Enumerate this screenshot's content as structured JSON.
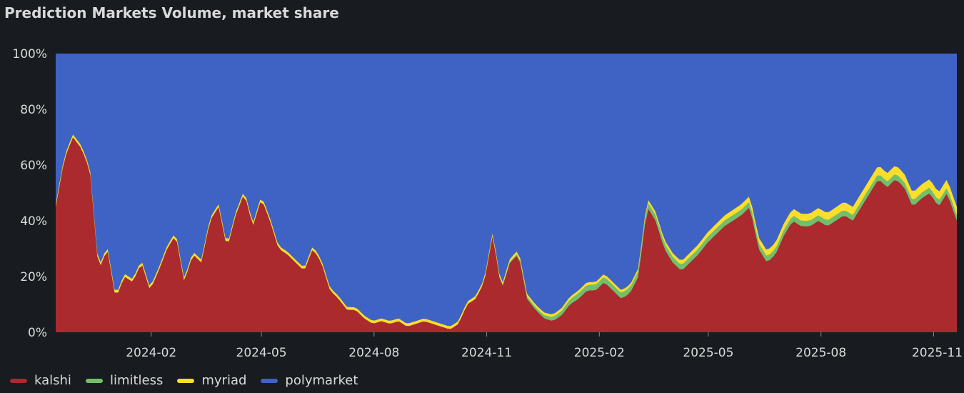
{
  "panel": {
    "title": "Prediction Markets Volume, market share"
  },
  "chart_data": {
    "type": "area",
    "stacked": true,
    "title": "Prediction Markets Volume, market share",
    "xlabel": "",
    "ylabel": "",
    "ylim": [
      0,
      100
    ],
    "y_ticks": [
      "0%",
      "20%",
      "40%",
      "60%",
      "80%",
      "100%"
    ],
    "x_tick_labels": [
      "2024-02",
      "2024-05",
      "2024-08",
      "2024-11",
      "2025-02",
      "2025-05",
      "2025-08",
      "2025-11"
    ],
    "x_tick_dates": [
      "2024-02-01",
      "2024-05-01",
      "2024-08-01",
      "2024-11-01",
      "2025-02-01",
      "2025-05-01",
      "2025-08-01",
      "2025-11-01"
    ],
    "x_range": [
      "2023-11-15",
      "2025-11-20"
    ],
    "legend_position": "bottom-left",
    "grid": false,
    "series": [
      {
        "name": "kalshi",
        "color": "#ab2a2d"
      },
      {
        "name": "limitless",
        "color": "#73bf69"
      },
      {
        "name": "myriad",
        "color": "#fade2a"
      },
      {
        "name": "polymarket",
        "color": "#3f63c4"
      }
    ],
    "kalshi": {
      "x": [
        "2023-11-15",
        "2023-11-22",
        "2023-11-29",
        "2023-12-06",
        "2023-12-13",
        "2023-12-20",
        "2023-12-27",
        "2024-01-03",
        "2024-01-10",
        "2024-01-17",
        "2024-01-24",
        "2024-01-31",
        "2024-02-07",
        "2024-02-14",
        "2024-02-21",
        "2024-02-28",
        "2024-03-06",
        "2024-03-13",
        "2024-03-20",
        "2024-03-27",
        "2024-04-03",
        "2024-04-10",
        "2024-04-17",
        "2024-04-24",
        "2024-05-01",
        "2024-05-08",
        "2024-05-15",
        "2024-05-22",
        "2024-05-29",
        "2024-06-05",
        "2024-06-12",
        "2024-06-19",
        "2024-06-26",
        "2024-07-03",
        "2024-07-10",
        "2024-07-17",
        "2024-07-24",
        "2024-07-31",
        "2024-08-07",
        "2024-08-14",
        "2024-08-21",
        "2024-08-28",
        "2024-09-04",
        "2024-09-11",
        "2024-09-18",
        "2024-09-25",
        "2024-10-02",
        "2024-10-09",
        "2024-10-16",
        "2024-10-23",
        "2024-10-30",
        "2024-11-06",
        "2024-11-13",
        "2024-11-20",
        "2024-11-27",
        "2024-12-04",
        "2024-12-11",
        "2024-12-18",
        "2024-12-25",
        "2025-01-01",
        "2025-01-08",
        "2025-01-15",
        "2025-01-22",
        "2025-01-29",
        "2025-02-05",
        "2025-02-12",
        "2025-02-19",
        "2025-02-26",
        "2025-03-05",
        "2025-03-12",
        "2025-03-19",
        "2025-03-26",
        "2025-04-02",
        "2025-04-09",
        "2025-04-16",
        "2025-04-23",
        "2025-04-30",
        "2025-05-07",
        "2025-05-14",
        "2025-05-21",
        "2025-05-28",
        "2025-06-04",
        "2025-06-11",
        "2025-06-18",
        "2025-06-25",
        "2025-07-02",
        "2025-07-09",
        "2025-07-16",
        "2025-07-23",
        "2025-07-30",
        "2025-08-06",
        "2025-08-13",
        "2025-08-20",
        "2025-08-27",
        "2025-09-03",
        "2025-09-10",
        "2025-09-17",
        "2025-09-24",
        "2025-10-01",
        "2025-10-08",
        "2025-10-15",
        "2025-10-22",
        "2025-10-29",
        "2025-11-05",
        "2025-11-12",
        "2025-11-20"
      ],
      "y": [
        45,
        62,
        70,
        66,
        58,
        22,
        30,
        12,
        20,
        18,
        25,
        15,
        22,
        30,
        35,
        18,
        28,
        25,
        40,
        45,
        30,
        42,
        50,
        38,
        48,
        40,
        30,
        28,
        25,
        22,
        30,
        25,
        15,
        12,
        8,
        8,
        5,
        3,
        4,
        3,
        4,
        2,
        3,
        4,
        3,
        2,
        1,
        3,
        10,
        12,
        18,
        35,
        15,
        25,
        28,
        12,
        8,
        5,
        4,
        6,
        10,
        12,
        15,
        15,
        18,
        15,
        12,
        14,
        20,
        45,
        40,
        30,
        25,
        22,
        25,
        28,
        32,
        35,
        38,
        40,
        42,
        45,
        30,
        25,
        28,
        35,
        40,
        38,
        38,
        40,
        38,
        40,
        42,
        40,
        45,
        50,
        55,
        52,
        55,
        52,
        45,
        48,
        50,
        45,
        50,
        40
      ]
    },
    "limitless": {
      "x": [
        "2023-11-15",
        "2024-06-01",
        "2024-11-01",
        "2024-12-15",
        "2025-01-15",
        "2025-02-15",
        "2025-03-15",
        "2025-06-01",
        "2025-09-01",
        "2025-11-20"
      ],
      "y": [
        0,
        0,
        0,
        1,
        2,
        2,
        2,
        2,
        2,
        2
      ]
    },
    "myriad": {
      "x": [
        "2023-11-15",
        "2024-06-01",
        "2024-11-01",
        "2025-01-01",
        "2025-03-01",
        "2025-06-01",
        "2025-09-01",
        "2025-11-20"
      ],
      "y": [
        1,
        1,
        1,
        1,
        1,
        2,
        3,
        3
      ]
    },
    "polymarket": {
      "note_remainder": "100% minus other series"
    }
  }
}
